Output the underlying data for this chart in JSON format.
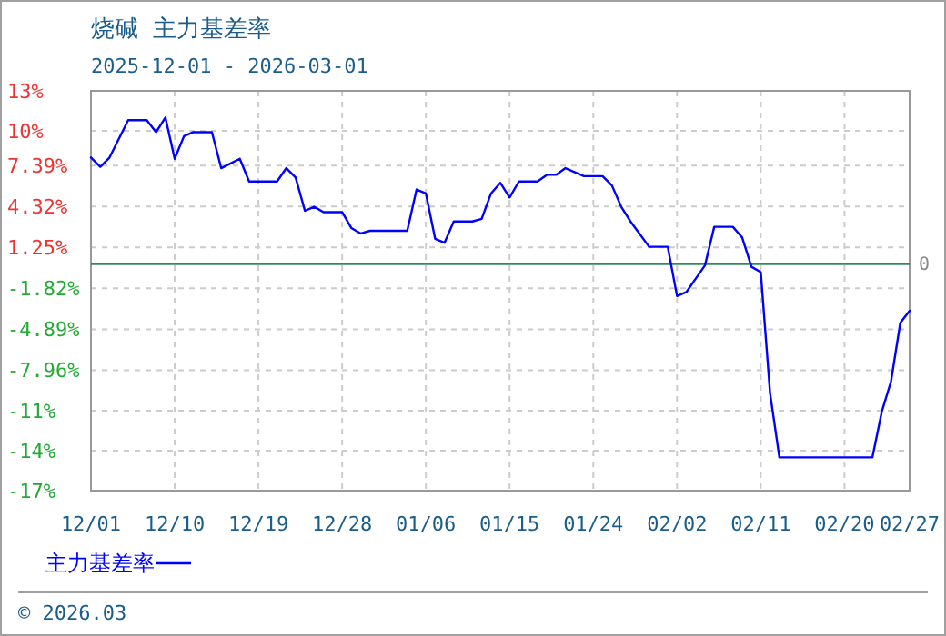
{
  "chart_data": {
    "type": "line",
    "title": "烧碱 主力基差率",
    "subtitle": "2025-12-01 - 2026-03-01",
    "x": [
      "2025-12-01",
      "2025-12-02",
      "2025-12-03",
      "2025-12-05",
      "2025-12-07",
      "2025-12-08",
      "2025-12-09",
      "2025-12-10",
      "2025-12-11",
      "2025-12-12",
      "2025-12-14",
      "2025-12-15",
      "2025-12-17",
      "2025-12-18",
      "2025-12-21",
      "2025-12-22",
      "2025-12-23",
      "2025-12-24",
      "2025-12-25",
      "2025-12-26",
      "2025-12-28",
      "2025-12-29",
      "2025-12-30",
      "2025-12-31",
      "2026-01-04",
      "2026-01-05",
      "2026-01-06",
      "2026-01-07",
      "2026-01-08",
      "2026-01-09",
      "2026-01-11",
      "2026-01-12",
      "2026-01-13",
      "2026-01-14",
      "2026-01-15",
      "2026-01-16",
      "2026-01-18",
      "2026-01-19",
      "2026-01-20",
      "2026-01-21",
      "2026-01-23",
      "2026-01-25",
      "2026-01-26",
      "2026-01-27",
      "2026-01-28",
      "2026-01-30",
      "2026-02-01",
      "2026-02-02",
      "2026-02-03",
      "2026-02-05",
      "2026-02-06",
      "2026-02-08",
      "2026-02-09",
      "2026-02-10",
      "2026-02-11",
      "2026-02-12",
      "2026-02-13",
      "2026-02-23",
      "2026-02-24",
      "2026-02-25",
      "2026-02-26",
      "2026-02-27"
    ],
    "series": [
      {
        "name": "主力基差率",
        "color": "#0000ff",
        "values": [
          8.0,
          7.3,
          8.0,
          10.8,
          10.8,
          9.9,
          11.0,
          7.9,
          9.6,
          9.9,
          9.9,
          7.2,
          7.9,
          6.2,
          6.2,
          7.2,
          6.5,
          4.0,
          4.3,
          3.9,
          3.9,
          2.7,
          2.3,
          2.5,
          2.5,
          5.6,
          5.3,
          1.9,
          1.6,
          3.2,
          3.2,
          3.4,
          5.3,
          6.1,
          5.0,
          6.2,
          6.2,
          6.7,
          6.7,
          7.2,
          6.6,
          6.6,
          5.9,
          4.3,
          3.2,
          1.3,
          1.3,
          -2.4,
          -2.1,
          -0.1,
          2.8,
          2.8,
          2.0,
          -0.2,
          -0.6,
          -9.7,
          -14.5,
          -14.5,
          -11.1,
          -8.8,
          -4.4,
          -3.5
        ]
      }
    ],
    "xlim": [
      "2025-12-01",
      "2026-02-27"
    ],
    "xticks": [
      {
        "value": "2025-12-01",
        "label": "12/01"
      },
      {
        "value": "2025-12-10",
        "label": "12/10"
      },
      {
        "value": "2025-12-19",
        "label": "12/19"
      },
      {
        "value": "2025-12-28",
        "label": "12/28"
      },
      {
        "value": "2026-01-06",
        "label": "01/06"
      },
      {
        "value": "2026-01-15",
        "label": "01/15"
      },
      {
        "value": "2026-01-24",
        "label": "01/24"
      },
      {
        "value": "2026-02-02",
        "label": "02/02"
      },
      {
        "value": "2026-02-11",
        "label": "02/11"
      },
      {
        "value": "2026-02-20",
        "label": "02/20"
      },
      {
        "value": "2026-02-27",
        "label": "02/27"
      }
    ],
    "ylim": [
      -17,
      13
    ],
    "yticks": [
      {
        "value": 13,
        "label": "13%"
      },
      {
        "value": 10,
        "label": "10%"
      },
      {
        "value": 7.39,
        "label": "7.39%"
      },
      {
        "value": 4.32,
        "label": "4.32%"
      },
      {
        "value": 1.25,
        "label": "1.25%"
      },
      {
        "value": -1.82,
        "label": "-1.82%"
      },
      {
        "value": -4.89,
        "label": "-4.89%"
      },
      {
        "value": -7.96,
        "label": "-7.96%"
      },
      {
        "value": -11,
        "label": "-11%"
      },
      {
        "value": -14,
        "label": "-14%"
      },
      {
        "value": -17,
        "label": "-17%"
      }
    ],
    "ref_lines": [
      {
        "axis": "y",
        "value": 0,
        "label": "0",
        "color": "#2e8b57"
      }
    ],
    "grid": true,
    "legend": "bottom",
    "line_style": "solid",
    "marker": "none",
    "annotations": [
      "© 2026.03"
    ]
  }
}
